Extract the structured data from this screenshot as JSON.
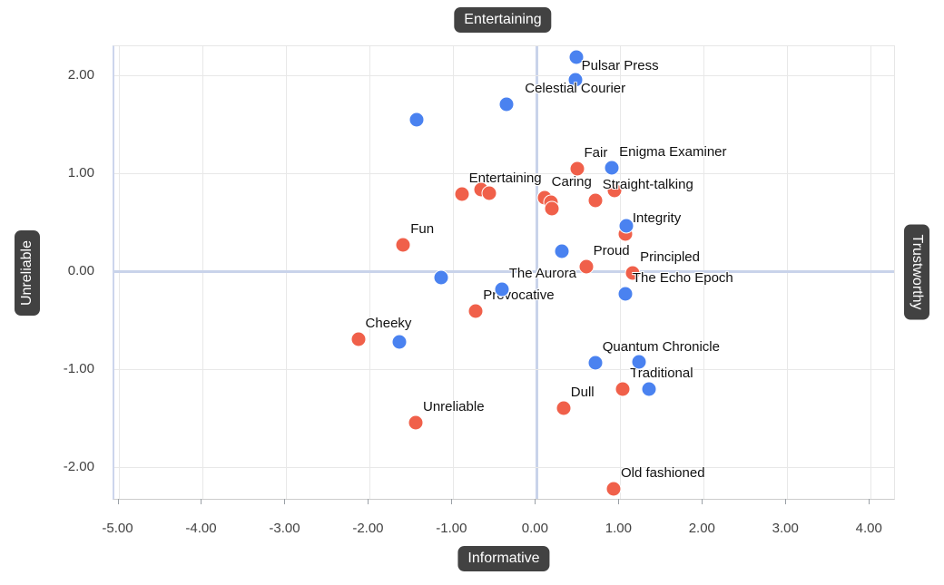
{
  "chart_data": {
    "type": "scatter",
    "quadrant_labels": {
      "top": "Entertaining",
      "bottom": "Informative",
      "left": "Unreliable",
      "right": "Trustworthy"
    },
    "x_ticks": [
      -5,
      -4,
      -3,
      -2,
      -1,
      0,
      1,
      2,
      3,
      4
    ],
    "y_ticks": [
      2,
      1,
      0,
      -1,
      -2
    ],
    "tick_decimals": 2,
    "xlim": [
      -5.06,
      4.28
    ],
    "ylim": [
      -2.32,
      2.3
    ],
    "grid": true,
    "colors": {
      "gridline": "#e8e8e8",
      "zero_line": "#c9d3ea",
      "tick_label": "#424242",
      "annotation": "#111111",
      "pill_bg": "#424242",
      "pill_text": "#ffffff",
      "red_series": "#f0604a",
      "blue_series": "#4a82f0"
    },
    "series": [
      {
        "name": "red-series",
        "color": "#f0604a",
        "points": [
          {
            "x": -0.9,
            "y": 0.79,
            "label": "Entertaining"
          },
          {
            "x": -0.67,
            "y": 0.84
          },
          {
            "x": -0.57,
            "y": 0.8
          },
          {
            "x": 0.09,
            "y": 0.75,
            "label": "Caring"
          },
          {
            "x": 0.17,
            "y": 0.71
          },
          {
            "x": 0.18,
            "y": 0.64
          },
          {
            "x": 0.48,
            "y": 1.05,
            "label": "Fair"
          },
          {
            "x": 0.93,
            "y": 0.83
          },
          {
            "x": 0.7,
            "y": 0.73,
            "label": "Straight-talking"
          },
          {
            "x": 1.06,
            "y": 0.38,
            "label": "Integrity"
          },
          {
            "x": -1.6,
            "y": 0.27,
            "label": "Fun"
          },
          {
            "x": 0.59,
            "y": 0.05,
            "label": "Proud"
          },
          {
            "x": 1.15,
            "y": -0.01,
            "label": "Principled"
          },
          {
            "x": -0.73,
            "y": -0.4,
            "label": "Provocative"
          },
          {
            "x": -2.14,
            "y": -0.69,
            "label": "Cheeky"
          },
          {
            "x": -1.45,
            "y": -1.54,
            "label": "Unreliable"
          },
          {
            "x": 0.32,
            "y": -1.39,
            "label": "Dull"
          },
          {
            "x": 1.03,
            "y": -1.2,
            "label": "Traditional"
          },
          {
            "x": 0.92,
            "y": -2.22,
            "label": "Old fashioned"
          }
        ]
      },
      {
        "name": "blue-series",
        "color": "#4a82f0",
        "points": [
          {
            "x": 0.47,
            "y": 2.19,
            "label": "Pulsar Press",
            "label_pos": "below-right"
          },
          {
            "x": 0.46,
            "y": 1.96,
            "label": "Celestial Courier",
            "label_pos": "below-center"
          },
          {
            "x": -0.36,
            "y": 1.71
          },
          {
            "x": -1.44,
            "y": 1.55
          },
          {
            "x": 0.9,
            "y": 1.06,
            "label": "Enigma Examiner"
          },
          {
            "x": 1.07,
            "y": 0.47
          },
          {
            "x": 0.3,
            "y": 0.21
          },
          {
            "x": -1.15,
            "y": -0.06
          },
          {
            "x": -0.42,
            "y": -0.18,
            "label": "The Aurora"
          },
          {
            "x": 1.06,
            "y": -0.23,
            "label": "The Echo Epoch"
          },
          {
            "x": -1.65,
            "y": -0.72
          },
          {
            "x": 0.7,
            "y": -0.93,
            "label": "Quantum Chronicle"
          },
          {
            "x": 1.23,
            "y": -0.92
          },
          {
            "x": 1.34,
            "y": -1.2
          }
        ]
      }
    ]
  }
}
